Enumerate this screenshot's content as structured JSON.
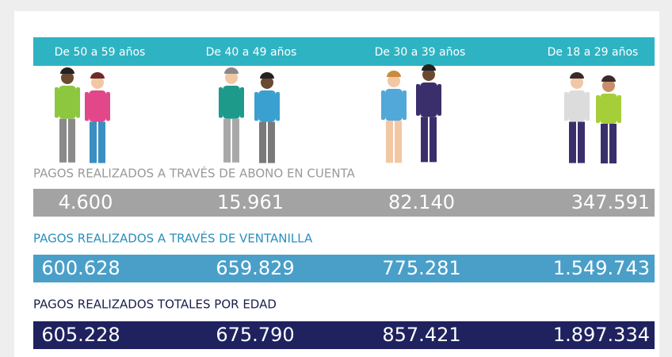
{
  "age_groups": [
    "De 50 a 59 años",
    "De 40 a 49 años",
    "De 30 a 39 años",
    "De 18 a 29 años"
  ],
  "sections": [
    {
      "title": "PAGOS REALIZADOS A TRAVÉS DE ABONO EN CUENTA",
      "values": [
        "4.600",
        "15.961",
        "82.140",
        "347.591"
      ]
    },
    {
      "title": "PAGOS REALIZADOS A TRAVÉS DE VENTANILLA",
      "values": [
        "600.628",
        "659.829",
        "775.281",
        "1.549.743"
      ]
    },
    {
      "title": "PAGOS REALIZADOS TOTALES POR EDAD",
      "values": [
        "605.228",
        "675.790",
        "857.421",
        "1.897.334"
      ]
    }
  ]
}
